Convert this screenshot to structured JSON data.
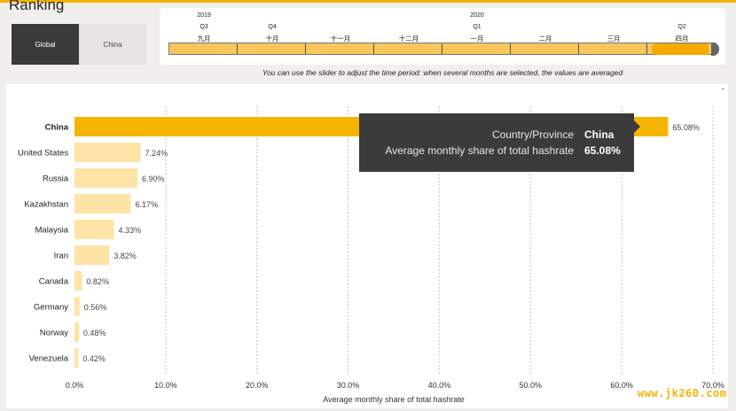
{
  "page": {
    "title": "Ranking"
  },
  "tabs": [
    {
      "label": "Global",
      "active": true
    },
    {
      "label": "China",
      "active": false
    }
  ],
  "slider": {
    "years": [
      "2019",
      "2020"
    ],
    "quarters": [
      "Q3",
      "Q4",
      "Q1",
      "Q2"
    ],
    "months": [
      "九月",
      "十月",
      "十一月",
      "十二月",
      "一月",
      "二月",
      "三月",
      "四月"
    ],
    "selected_month": "四月",
    "hint": "You can use the slider to adjust the time period: when several months are selected, the values are averaged"
  },
  "toolbar": {
    "more_label": "-"
  },
  "tooltip": {
    "key1": "Country/Province",
    "val1": "China",
    "key2": "Average monthly share of total hashrate",
    "val2": "65.08%"
  },
  "colors": {
    "accent": "#f5b400",
    "bar_highlight": "#f5b400",
    "bar_default": "#fde4a6",
    "dark": "#3a3a3a"
  },
  "chart_data": {
    "type": "bar",
    "orientation": "horizontal",
    "categories": [
      "China",
      "United States",
      "Russia",
      "Kazakhstan",
      "Malaysia",
      "Iran",
      "Canada",
      "Germany",
      "Norway",
      "Venezuela"
    ],
    "values": [
      65.08,
      7.24,
      6.9,
      6.17,
      4.33,
      3.82,
      0.82,
      0.56,
      0.48,
      0.42
    ],
    "value_labels": [
      "65.08%",
      "7.24%",
      "6.90%",
      "6.17%",
      "4.33%",
      "3.82%",
      "0.82%",
      "0.56%",
      "0.48%",
      "0.42%"
    ],
    "highlighted": "China",
    "xlabel": "Average monthly share of total hashrate",
    "xticks": [
      "0.0%",
      "10.0%",
      "20.0%",
      "30.0%",
      "40.0%",
      "50.0%",
      "60.0%",
      "70.0%"
    ],
    "xlim": [
      0,
      70
    ],
    "grid": true
  },
  "watermark": "www.jk260.com"
}
